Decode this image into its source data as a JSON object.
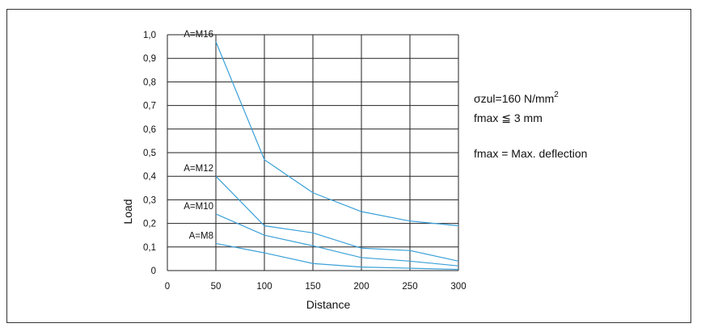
{
  "notes": {
    "sigma_prefix": "σzul=160 N/mm",
    "sigma_exp": "2",
    "fmax_prefix": "fmax",
    "fmax_symbol": "≦",
    "fmax_value": "3 mm",
    "definition": "fmax = Max. deflection"
  },
  "chart_data": {
    "type": "line",
    "xlabel": "Distance",
    "ylabel": "Load",
    "xlim": [
      0,
      300
    ],
    "ylim": [
      0,
      1.0
    ],
    "x_ticks": [
      0,
      50,
      100,
      150,
      200,
      250,
      300
    ],
    "x_tick_labels": [
      "0",
      "50",
      "100",
      "150",
      "200",
      "250",
      "300"
    ],
    "y_ticks": [
      0,
      0.1,
      0.2,
      0.3,
      0.4,
      0.5,
      0.6,
      0.7,
      0.8,
      0.9,
      1.0
    ],
    "y_tick_labels": [
      "0",
      "0,1",
      "0,2",
      "0,3",
      "0,4",
      "0,5",
      "0,6",
      "0,7",
      "0,8",
      "0,9",
      "1,0"
    ],
    "grid": true,
    "series_color": "#3aa0d8",
    "series": [
      {
        "name": "A=M16",
        "x": [
          50,
          100,
          150,
          200,
          250,
          300
        ],
        "values": [
          0.97,
          0.47,
          0.33,
          0.25,
          0.21,
          0.19
        ]
      },
      {
        "name": "A=M12",
        "x": [
          50,
          100,
          150,
          200,
          250,
          300
        ],
        "values": [
          0.4,
          0.19,
          0.16,
          0.095,
          0.085,
          0.04
        ]
      },
      {
        "name": "A=M10",
        "x": [
          50,
          100,
          150,
          200,
          250,
          300
        ],
        "values": [
          0.24,
          0.15,
          0.105,
          0.055,
          0.04,
          0.02
        ]
      },
      {
        "name": "A=M8",
        "x": [
          50,
          100,
          150,
          200,
          250,
          300
        ],
        "values": [
          0.115,
          0.075,
          0.03,
          0.015,
          0.01,
          0.005
        ]
      }
    ]
  }
}
